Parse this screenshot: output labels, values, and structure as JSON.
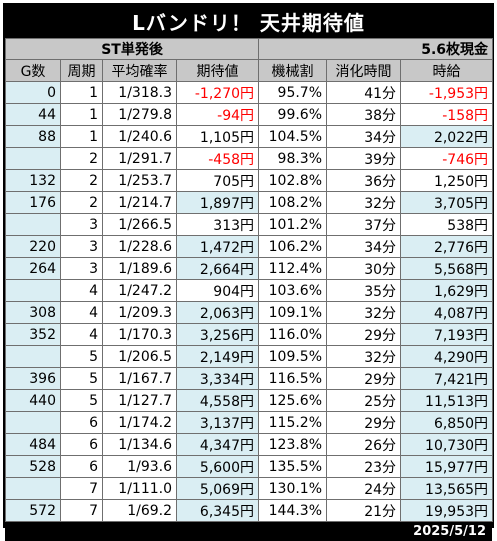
{
  "title": "Lバンドリ！ 天井期待値",
  "subheader": {
    "mode": "ST単発後",
    "exchange": "5.6枚現金"
  },
  "columns": [
    "G数",
    "周期",
    "平均確率",
    "期待値",
    "機械割",
    "消化時間",
    "時給"
  ],
  "rows": [
    {
      "g": "0",
      "cycle": "1",
      "prob": "1/318.3",
      "ev": "-1,270円",
      "rate": "95.7%",
      "time": "41分",
      "hourly": "-1,953円",
      "g_hl": true,
      "ev_hl": false,
      "hourly_hl": false,
      "ev_neg": true,
      "hourly_neg": true
    },
    {
      "g": "44",
      "cycle": "1",
      "prob": "1/279.8",
      "ev": "-94円",
      "rate": "99.6%",
      "time": "38分",
      "hourly": "-158円",
      "g_hl": true,
      "ev_hl": false,
      "hourly_hl": false,
      "ev_neg": true,
      "hourly_neg": true
    },
    {
      "g": "88",
      "cycle": "1",
      "prob": "1/240.6",
      "ev": "1,105円",
      "rate": "104.5%",
      "time": "34分",
      "hourly": "2,022円",
      "g_hl": true,
      "ev_hl": false,
      "hourly_hl": true,
      "ev_neg": false,
      "hourly_neg": false
    },
    {
      "g": "",
      "cycle": "2",
      "prob": "1/291.7",
      "ev": "-458円",
      "rate": "98.3%",
      "time": "39分",
      "hourly": "-746円",
      "g_hl": true,
      "ev_hl": false,
      "hourly_hl": false,
      "ev_neg": true,
      "hourly_neg": true
    },
    {
      "g": "132",
      "cycle": "2",
      "prob": "1/253.7",
      "ev": "705円",
      "rate": "102.8%",
      "time": "36分",
      "hourly": "1,250円",
      "g_hl": true,
      "ev_hl": false,
      "hourly_hl": false,
      "ev_neg": false,
      "hourly_neg": false
    },
    {
      "g": "176",
      "cycle": "2",
      "prob": "1/214.7",
      "ev": "1,897円",
      "rate": "108.2%",
      "time": "32分",
      "hourly": "3,705円",
      "g_hl": true,
      "ev_hl": true,
      "hourly_hl": true,
      "ev_neg": false,
      "hourly_neg": false
    },
    {
      "g": "",
      "cycle": "3",
      "prob": "1/266.5",
      "ev": "313円",
      "rate": "101.2%",
      "time": "37分",
      "hourly": "538円",
      "g_hl": true,
      "ev_hl": false,
      "hourly_hl": false,
      "ev_neg": false,
      "hourly_neg": false
    },
    {
      "g": "220",
      "cycle": "3",
      "prob": "1/228.6",
      "ev": "1,472円",
      "rate": "106.2%",
      "time": "34分",
      "hourly": "2,776円",
      "g_hl": true,
      "ev_hl": true,
      "hourly_hl": true,
      "ev_neg": false,
      "hourly_neg": false
    },
    {
      "g": "264",
      "cycle": "3",
      "prob": "1/189.6",
      "ev": "2,664円",
      "rate": "112.4%",
      "time": "30分",
      "hourly": "5,568円",
      "g_hl": true,
      "ev_hl": true,
      "hourly_hl": true,
      "ev_neg": false,
      "hourly_neg": false
    },
    {
      "g": "",
      "cycle": "4",
      "prob": "1/247.2",
      "ev": "904円",
      "rate": "103.6%",
      "time": "35分",
      "hourly": "1,629円",
      "g_hl": true,
      "ev_hl": false,
      "hourly_hl": true,
      "ev_neg": false,
      "hourly_neg": false
    },
    {
      "g": "308",
      "cycle": "4",
      "prob": "1/209.3",
      "ev": "2,063円",
      "rate": "109.1%",
      "time": "32分",
      "hourly": "4,087円",
      "g_hl": true,
      "ev_hl": true,
      "hourly_hl": true,
      "ev_neg": false,
      "hourly_neg": false
    },
    {
      "g": "352",
      "cycle": "4",
      "prob": "1/170.3",
      "ev": "3,256円",
      "rate": "116.0%",
      "time": "29分",
      "hourly": "7,193円",
      "g_hl": true,
      "ev_hl": true,
      "hourly_hl": true,
      "ev_neg": false,
      "hourly_neg": false
    },
    {
      "g": "",
      "cycle": "5",
      "prob": "1/206.5",
      "ev": "2,149円",
      "rate": "109.5%",
      "time": "32分",
      "hourly": "4,290円",
      "g_hl": true,
      "ev_hl": true,
      "hourly_hl": true,
      "ev_neg": false,
      "hourly_neg": false
    },
    {
      "g": "396",
      "cycle": "5",
      "prob": "1/167.7",
      "ev": "3,334円",
      "rate": "116.5%",
      "time": "29分",
      "hourly": "7,421円",
      "g_hl": true,
      "ev_hl": true,
      "hourly_hl": true,
      "ev_neg": false,
      "hourly_neg": false
    },
    {
      "g": "440",
      "cycle": "5",
      "prob": "1/127.7",
      "ev": "4,558円",
      "rate": "125.6%",
      "time": "25分",
      "hourly": "11,513円",
      "g_hl": true,
      "ev_hl": true,
      "hourly_hl": true,
      "ev_neg": false,
      "hourly_neg": false
    },
    {
      "g": "",
      "cycle": "6",
      "prob": "1/174.2",
      "ev": "3,137円",
      "rate": "115.2%",
      "time": "29分",
      "hourly": "6,850円",
      "g_hl": true,
      "ev_hl": true,
      "hourly_hl": true,
      "ev_neg": false,
      "hourly_neg": false
    },
    {
      "g": "484",
      "cycle": "6",
      "prob": "1/134.6",
      "ev": "4,347円",
      "rate": "123.8%",
      "time": "26分",
      "hourly": "10,730円",
      "g_hl": true,
      "ev_hl": true,
      "hourly_hl": true,
      "ev_neg": false,
      "hourly_neg": false
    },
    {
      "g": "528",
      "cycle": "6",
      "prob": "1/93.6",
      "ev": "5,600円",
      "rate": "135.5%",
      "time": "23分",
      "hourly": "15,977円",
      "g_hl": true,
      "ev_hl": true,
      "hourly_hl": true,
      "ev_neg": false,
      "hourly_neg": false
    },
    {
      "g": "",
      "cycle": "7",
      "prob": "1/111.0",
      "ev": "5,069円",
      "rate": "130.1%",
      "time": "24分",
      "hourly": "13,565円",
      "g_hl": true,
      "ev_hl": true,
      "hourly_hl": true,
      "ev_neg": false,
      "hourly_neg": false
    },
    {
      "g": "572",
      "cycle": "7",
      "prob": "1/69.2",
      "ev": "6,345円",
      "rate": "144.3%",
      "time": "21分",
      "hourly": "19,953円",
      "g_hl": true,
      "ev_hl": true,
      "hourly_hl": true,
      "ev_neg": false,
      "hourly_neg": false
    }
  ],
  "footer": {
    "date": "2025/5/12"
  },
  "colors": {
    "header_bg": "#000000",
    "subheader_bg": "#c8c8c8",
    "highlight": "#daeef3",
    "negative": "#ff0000"
  }
}
